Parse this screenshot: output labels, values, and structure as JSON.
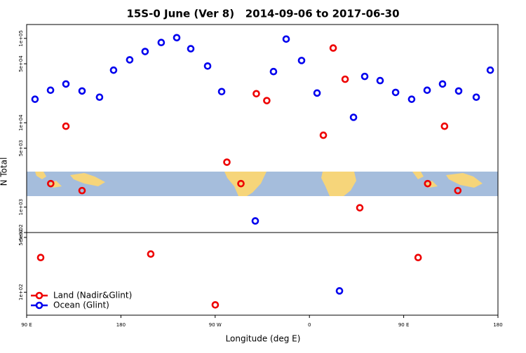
{
  "chart_data": [
    {
      "type": "scatter",
      "title": "15S-0 June (Ver 8)   2014-09-06 to 2017-06-30",
      "ylabel": "N Total",
      "log": true,
      "xlim": [
        90,
        540
      ],
      "ylim": [
        500,
        146000
      ],
      "yticks": [
        {
          "value": 100000,
          "label": "1e+05"
        },
        {
          "value": 50000,
          "label": "5e+04"
        },
        {
          "value": 10000,
          "label": "1e+04"
        },
        {
          "value": 5000,
          "label": "5e+03"
        },
        {
          "value": 1000,
          "label": "1e+03"
        },
        {
          "value": 500,
          "label": "5e+02"
        }
      ],
      "series": [
        {
          "color": "#ee0000",
          "x": [
            127.5,
            113.0,
            142.9,
            281.2,
            294.6,
            309.3,
            319.3,
            373.3,
            382.7,
            394.1,
            408.1,
            472.9,
            489.0,
            501.7
          ],
          "values": [
            9100,
            1900,
            1570,
            3410,
            1900,
            22100,
            18300,
            7110,
            76800,
            32800,
            982,
            1900,
            9100,
            1570
          ]
        },
        {
          "color": "#0000ee",
          "x": [
            98.0,
            112.8,
            127.5,
            142.9,
            159.6,
            173.0,
            188.4,
            203.1,
            218.5,
            233.3,
            246.7,
            262.8,
            276.2,
            308.3,
            325.7,
            337.8,
            352.5,
            367.3,
            402.1,
            412.8,
            427.5,
            442.3,
            457.6,
            472.4,
            487.1,
            502.5,
            519.3,
            532.7
          ],
          "values": [
            19000,
            24300,
            28800,
            23800,
            20100,
            42000,
            55700,
            69900,
            89300,
            102000,
            75400,
            47000,
            23400,
            686,
            40400,
            98100,
            54700,
            22500,
            11600,
            35400,
            31600,
            22900,
            19000,
            24300,
            28800,
            23800,
            20100,
            42000
          ]
        }
      ]
    },
    {
      "type": "scatter",
      "xlabel": "Longitude (deg E)",
      "log": true,
      "xlim": [
        90,
        540
      ],
      "ylim": [
        51,
        577
      ],
      "xticks": [
        {
          "value": 90,
          "label": "90 E"
        },
        180,
        {
          "value": 270,
          "label": "90 W"
        },
        {
          "value": 360,
          "label": "0"
        },
        {
          "value": 450,
          "label": "90 E"
        },
        {
          "value": 540,
          "label": "180"
        }
      ],
      "yticks": [
        {
          "value": 500,
          "label": "5e+02"
        },
        {
          "value": 100,
          "label": "1e+02"
        }
      ],
      "legend": "lower left",
      "series": [
        {
          "name": "Land (Nadir&Glint)",
          "color": "#ee0000",
          "x": [
            103.4,
            208.5,
            270.1,
            463.8
          ],
          "values": [
            277,
            307,
            69,
            277
          ]
        },
        {
          "name": "Ocean (Glint)",
          "color": "#0000ee",
          "x": [
            388.7
          ],
          "values": [
            104
          ]
        }
      ]
    }
  ]
}
